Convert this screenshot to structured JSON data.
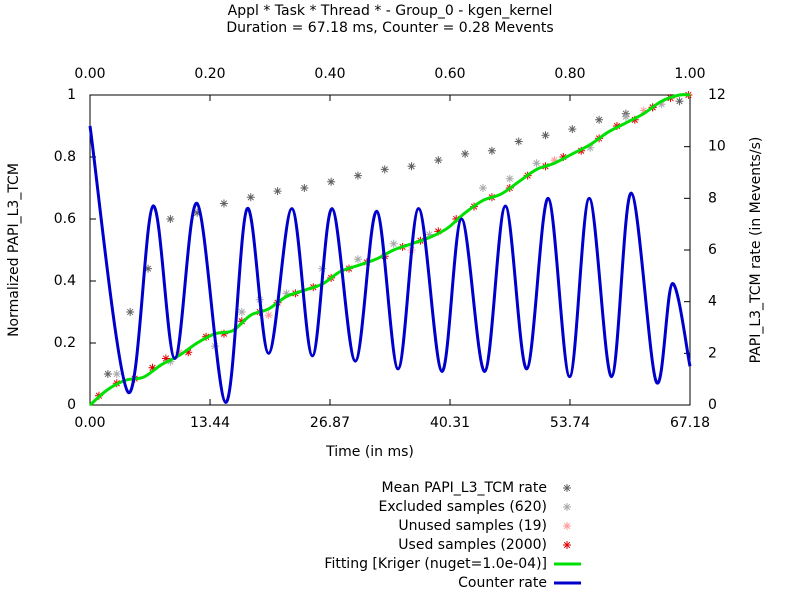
{
  "chart_data": {
    "type": "line",
    "title": "Appl * Task * Thread * - Group_0 - kgen_kernel",
    "subtitle": "Duration = 67.18 ms, Counter = 0.28 Mevents",
    "x_label": "Time (in ms)",
    "y_label": "Normalized PAPI_L3_TCM",
    "y2_label": "PAPI_L3_TCM rate (in Mevents/s)",
    "xlim": [
      0,
      67.18
    ],
    "xticks": [
      {
        "value": 0,
        "label": "0.00"
      },
      13.44,
      26.87,
      40.31,
      53.74,
      67.18
    ],
    "x2lim": [
      0,
      1
    ],
    "x2ticks": [
      {
        "value": 0,
        "label": "0.00"
      },
      {
        "value": 0.2,
        "label": "0.20"
      },
      {
        "value": 0.4,
        "label": "0.40"
      },
      {
        "value": 0.6,
        "label": "0.60"
      },
      {
        "value": 0.8,
        "label": "0.80"
      },
      {
        "value": 1,
        "label": "1.00"
      }
    ],
    "ylim": [
      0,
      1
    ],
    "yticks": [
      0,
      0.2,
      0.4,
      0.6,
      0.8,
      1
    ],
    "y2lim": [
      0,
      12
    ],
    "y2ticks": [
      0,
      2,
      4,
      6,
      8,
      10,
      12
    ],
    "series": [
      {
        "name": "Mean PAPI_L3_TCM rate",
        "type": "scatter",
        "color": "#606060",
        "x": [
          2,
          4.5,
          6.5,
          9,
          12,
          15,
          18,
          21,
          24,
          27,
          30,
          33,
          36,
          39,
          42,
          45,
          48,
          51,
          54,
          57,
          60,
          63,
          66
        ],
        "values": [
          0.1,
          0.3,
          0.44,
          0.6,
          0.62,
          0.65,
          0.67,
          0.69,
          0.7,
          0.72,
          0.74,
          0.76,
          0.77,
          0.79,
          0.81,
          0.82,
          0.85,
          0.87,
          0.89,
          0.92,
          0.94,
          0.96,
          0.98
        ]
      },
      {
        "name": "Excluded samples (620)",
        "type": "scatter",
        "color": "#a8a8a8",
        "x": [
          3,
          9,
          14,
          17,
          19,
          22,
          26,
          30,
          34,
          38,
          44,
          47,
          50,
          56,
          60,
          64
        ],
        "values": [
          0.1,
          0.14,
          0.19,
          0.3,
          0.34,
          0.36,
          0.44,
          0.47,
          0.52,
          0.55,
          0.7,
          0.73,
          0.78,
          0.83,
          0.93,
          0.97
        ]
      },
      {
        "name": "Unused samples (19)",
        "type": "scatter",
        "color": "#ff9999",
        "x": [
          10,
          20,
          36,
          52,
          62
        ],
        "values": [
          0.17,
          0.29,
          0.5,
          0.79,
          0.95
        ]
      },
      {
        "name": "Used samples (2000)",
        "type": "scatter",
        "color": "#e00000",
        "x": [
          1,
          3,
          5,
          7,
          8.5,
          11,
          13,
          15,
          17,
          19,
          21,
          23,
          25,
          27,
          29,
          31,
          33,
          35,
          37,
          39,
          41,
          43,
          45,
          47,
          49,
          51,
          53,
          55,
          57,
          59,
          61,
          63,
          65,
          67
        ],
        "values": [
          0.03,
          0.07,
          0.085,
          0.12,
          0.15,
          0.17,
          0.22,
          0.23,
          0.27,
          0.3,
          0.33,
          0.36,
          0.38,
          0.41,
          0.44,
          0.46,
          0.48,
          0.51,
          0.53,
          0.56,
          0.6,
          0.64,
          0.67,
          0.7,
          0.74,
          0.77,
          0.8,
          0.82,
          0.86,
          0.9,
          0.92,
          0.96,
          0.99,
          1.0
        ]
      },
      {
        "name": "Fitting [Kriger (nuget=1.0e-04)]",
        "type": "line",
        "color": "#00e000",
        "x": [
          0,
          2,
          4,
          6,
          8,
          10,
          12,
          14,
          16,
          18,
          20,
          22,
          24,
          26,
          28,
          30,
          32,
          34,
          36,
          38,
          40,
          42,
          44,
          46,
          48,
          50,
          52,
          54,
          56,
          58,
          60,
          62,
          64,
          66,
          67.18
        ],
        "values": [
          0,
          0.05,
          0.08,
          0.09,
          0.13,
          0.16,
          0.2,
          0.23,
          0.24,
          0.29,
          0.31,
          0.35,
          0.37,
          0.39,
          0.43,
          0.45,
          0.47,
          0.5,
          0.52,
          0.54,
          0.57,
          0.62,
          0.66,
          0.68,
          0.72,
          0.76,
          0.78,
          0.81,
          0.84,
          0.88,
          0.91,
          0.94,
          0.98,
          1.0,
          1.0
        ]
      },
      {
        "name": "Counter rate",
        "type": "line",
        "color": "#0000cc",
        "axis": "y2",
        "x": [
          0,
          4.25,
          7.05,
          9.5,
          12.0,
          15.2,
          17.6,
          20.0,
          22.6,
          24.9,
          27.1,
          29.7,
          32.1,
          34.5,
          36.8,
          39.4,
          41.6,
          44.2,
          46.5,
          48.9,
          51.3,
          53.7,
          55.9,
          58.4,
          60.6,
          63.4,
          65.2,
          67.18
        ],
        "values": [
          10.8,
          0.5,
          7.7,
          1.8,
          7.8,
          0.1,
          7.6,
          2.0,
          7.6,
          1.9,
          7.6,
          1.7,
          7.5,
          1.4,
          7.6,
          1.3,
          7.2,
          1.3,
          7.7,
          1.4,
          8.0,
          1.1,
          8.0,
          1.1,
          8.2,
          0.9,
          4.7,
          1.5
        ]
      }
    ]
  }
}
